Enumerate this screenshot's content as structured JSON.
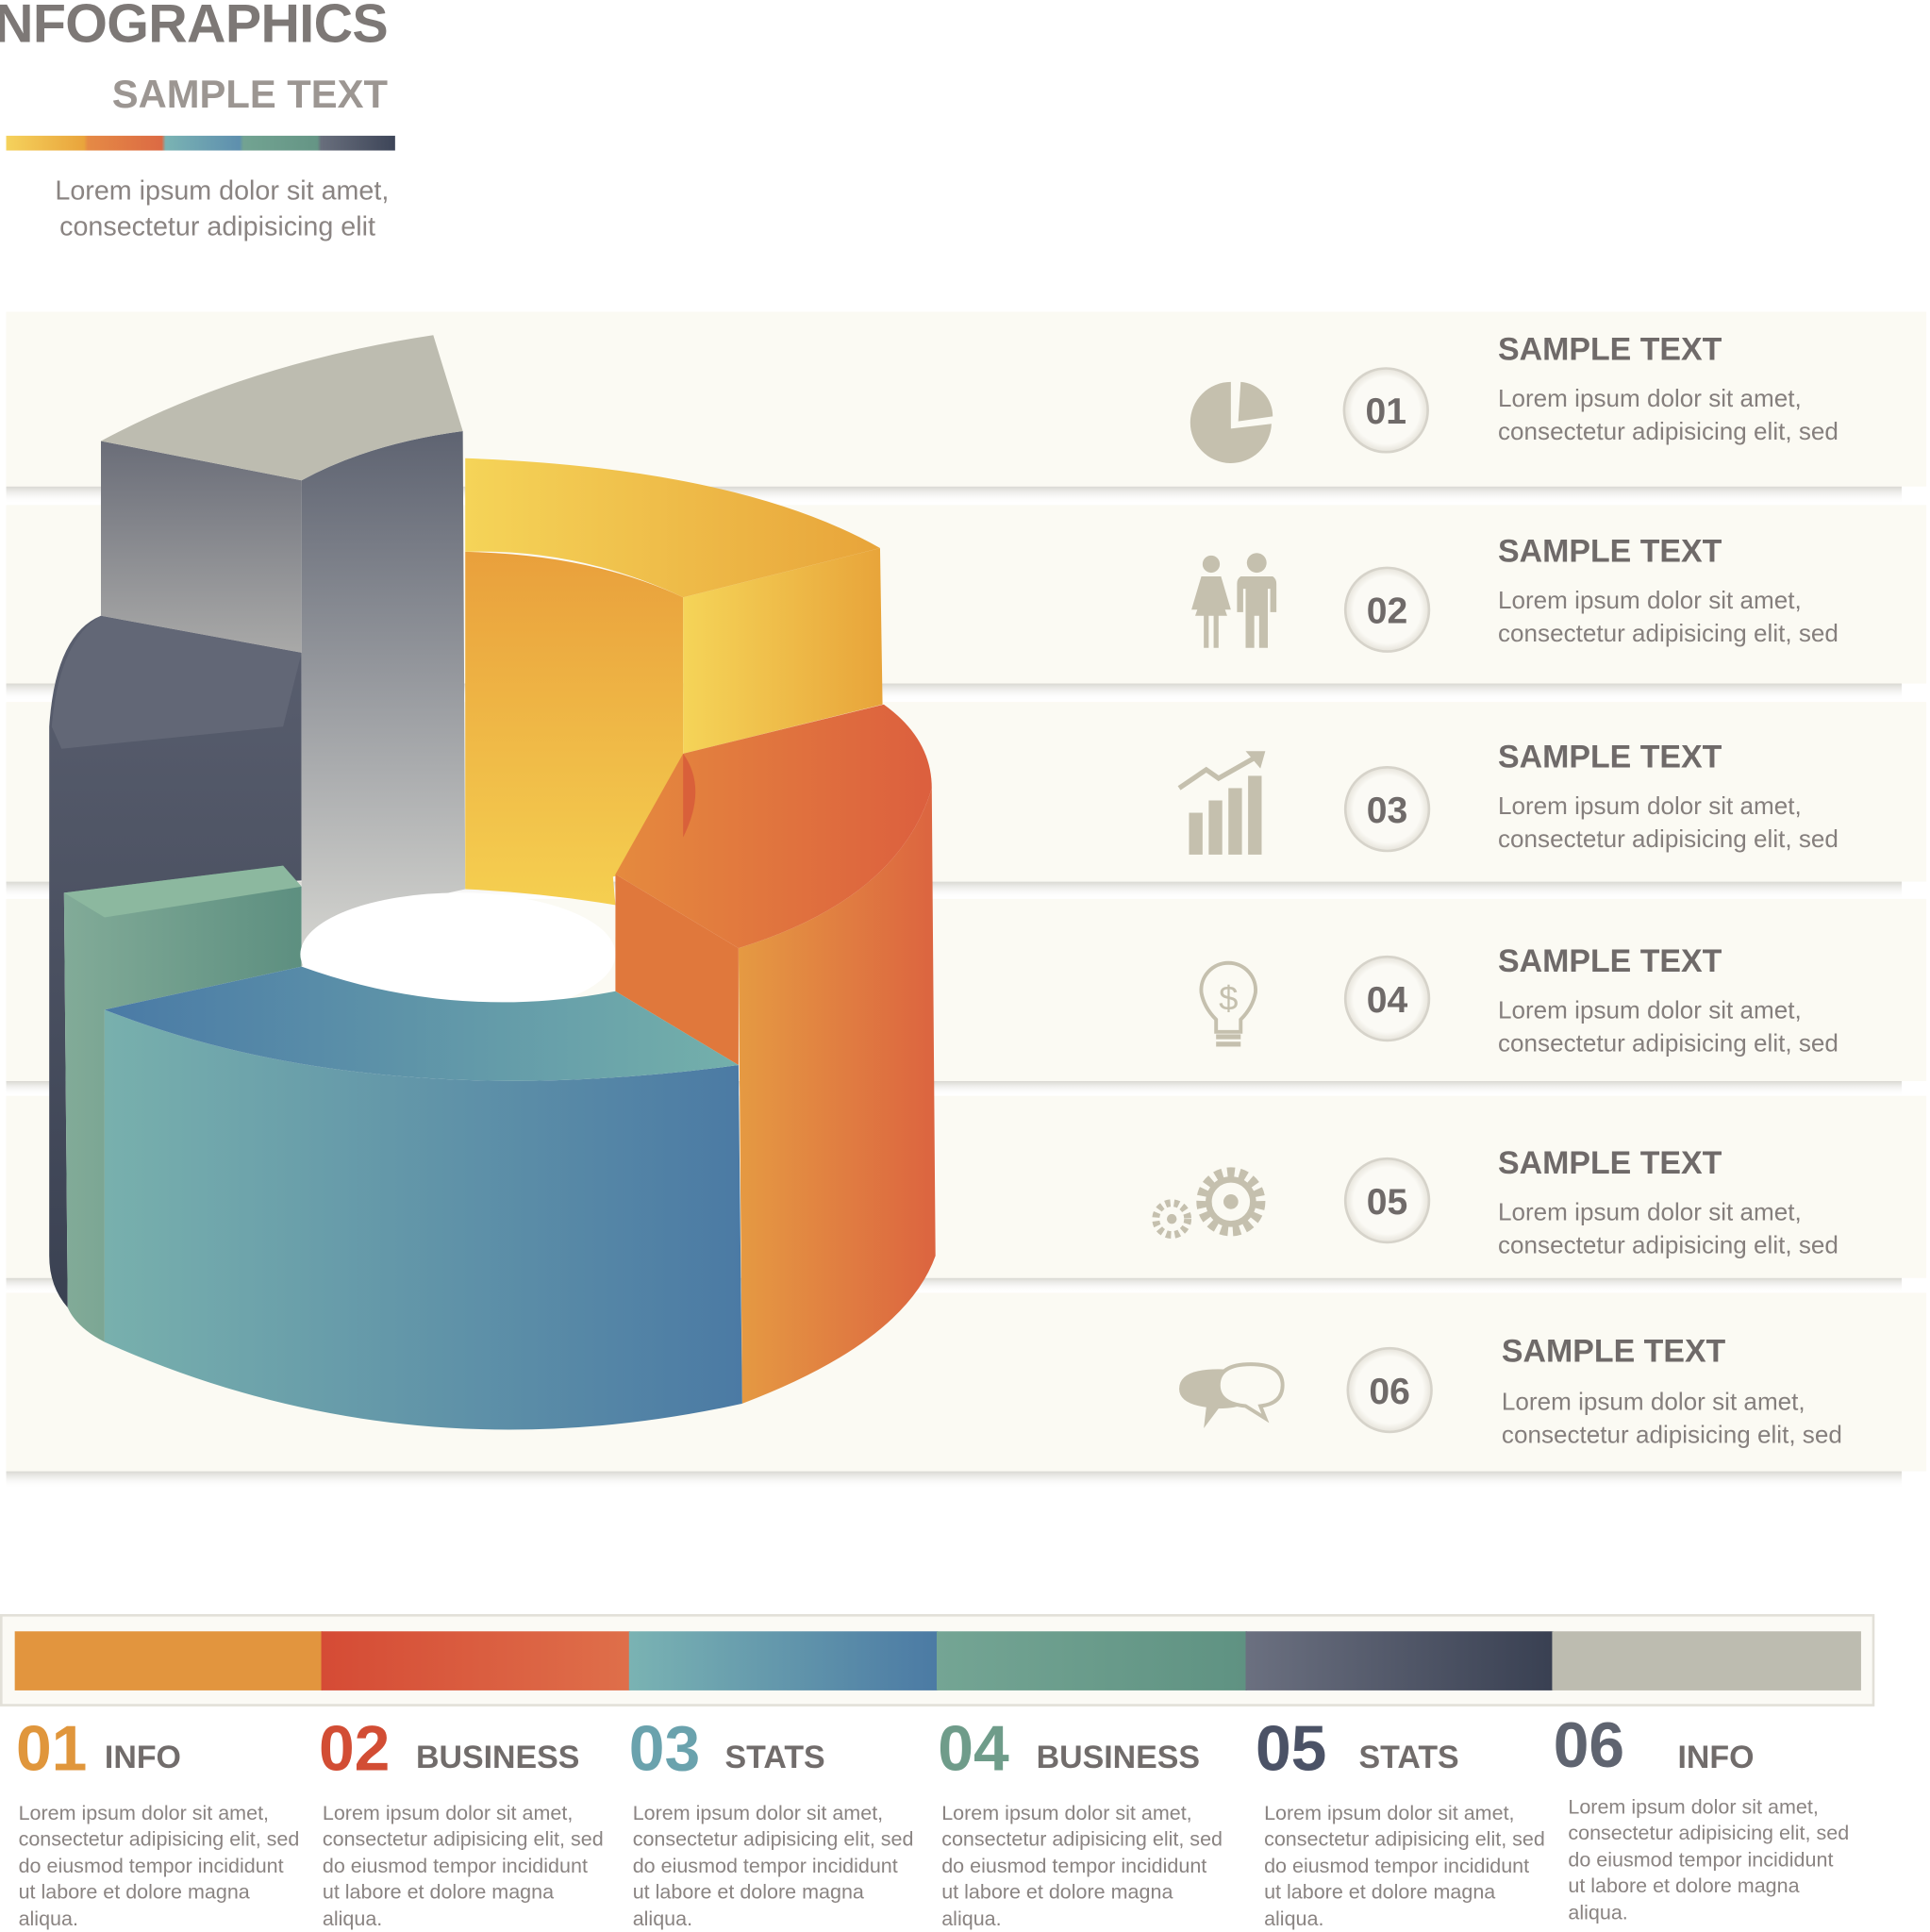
{
  "header": {
    "title": "INFOGRAPHICS",
    "subtitle": "SAMPLE TEXT",
    "lead_lines": [
      "Lorem ipsum dolor sit amet,",
      "consectetur adipisicing elit"
    ],
    "color_bar": [
      "#f5cf5a",
      "#e2783c",
      "#78b1b2",
      "#6c9c8a",
      "#444c5e"
    ]
  },
  "rows": [
    {
      "number": "01",
      "icon": "pie-chart-icon",
      "title": "SAMPLE TEXT",
      "lines": [
        "Lorem ipsum dolor sit amet,",
        "consectetur adipisicing elit, sed"
      ]
    },
    {
      "number": "02",
      "icon": "people-icon",
      "title": "SAMPLE TEXT",
      "lines": [
        "Lorem ipsum dolor sit amet,",
        "consectetur adipisicing elit, sed"
      ]
    },
    {
      "number": "03",
      "icon": "growth-chart-icon",
      "title": "SAMPLE TEXT",
      "lines": [
        "Lorem ipsum dolor sit amet,",
        "consectetur adipisicing elit, sed"
      ]
    },
    {
      "number": "04",
      "icon": "lightbulb-dollar-icon",
      "title": "SAMPLE TEXT",
      "lines": [
        "Lorem ipsum dolor sit amet,",
        "consectetur adipisicing elit, sed"
      ]
    },
    {
      "number": "05",
      "icon": "gears-icon",
      "title": "SAMPLE TEXT",
      "lines": [
        "Lorem ipsum dolor sit amet,",
        "consectetur adipisicing elit, sed"
      ]
    },
    {
      "number": "06",
      "icon": "speech-bubbles-icon",
      "title": "SAMPLE TEXT",
      "lines": [
        "Lorem ipsum dolor sit amet,",
        "consectetur adipisicing elit, sed"
      ]
    }
  ],
  "footer": {
    "segments": [
      "#e2953e",
      "#d9553c",
      "#6fa8b0",
      "#6c9c8a",
      "#4a5164",
      "#bdbcb0"
    ],
    "columns": [
      {
        "number": "01",
        "label": "INFO",
        "color": "#e0963c",
        "lines": [
          "Lorem ipsum dolor sit amet,",
          "consectetur adipisicing elit, sed",
          "do eiusmod tempor incididunt",
          "ut labore et dolore magna",
          "aliqua."
        ]
      },
      {
        "number": "02",
        "label": "BUSINESS",
        "color": "#d24d34",
        "lines": [
          "Lorem ipsum dolor sit amet,",
          "consectetur adipisicing elit, sed",
          "do eiusmod tempor incididunt",
          "ut labore et dolore magna",
          "aliqua."
        ]
      },
      {
        "number": "03",
        "label": "STATS",
        "color": "#6aa2ad",
        "lines": [
          "Lorem ipsum dolor sit amet,",
          "consectetur adipisicing elit, sed",
          "do eiusmod tempor incididunt",
          "ut labore et dolore magna",
          "aliqua."
        ]
      },
      {
        "number": "04",
        "label": "BUSINESS",
        "color": "#6f9c8a",
        "lines": [
          "Lorem ipsum dolor sit amet,",
          "consectetur adipisicing elit, sed",
          "do eiusmod tempor incididunt",
          "ut labore et dolore magna",
          "aliqua."
        ]
      },
      {
        "number": "05",
        "label": "STATS",
        "color": "#4b5266",
        "lines": [
          "Lorem ipsum dolor sit amet,",
          "consectetur adipisicing elit, sed",
          "do eiusmod tempor incididunt",
          "ut labore et dolore magna",
          "aliqua."
        ]
      },
      {
        "number": "06",
        "label": "INFO",
        "color": "#5f6470",
        "lines": [
          "Lorem ipsum dolor sit amet,",
          "consectetur adipisicing elit, sed",
          "do eiusmod tempor incididunt",
          "ut labore et dolore magna",
          "aliqua."
        ]
      }
    ]
  }
}
